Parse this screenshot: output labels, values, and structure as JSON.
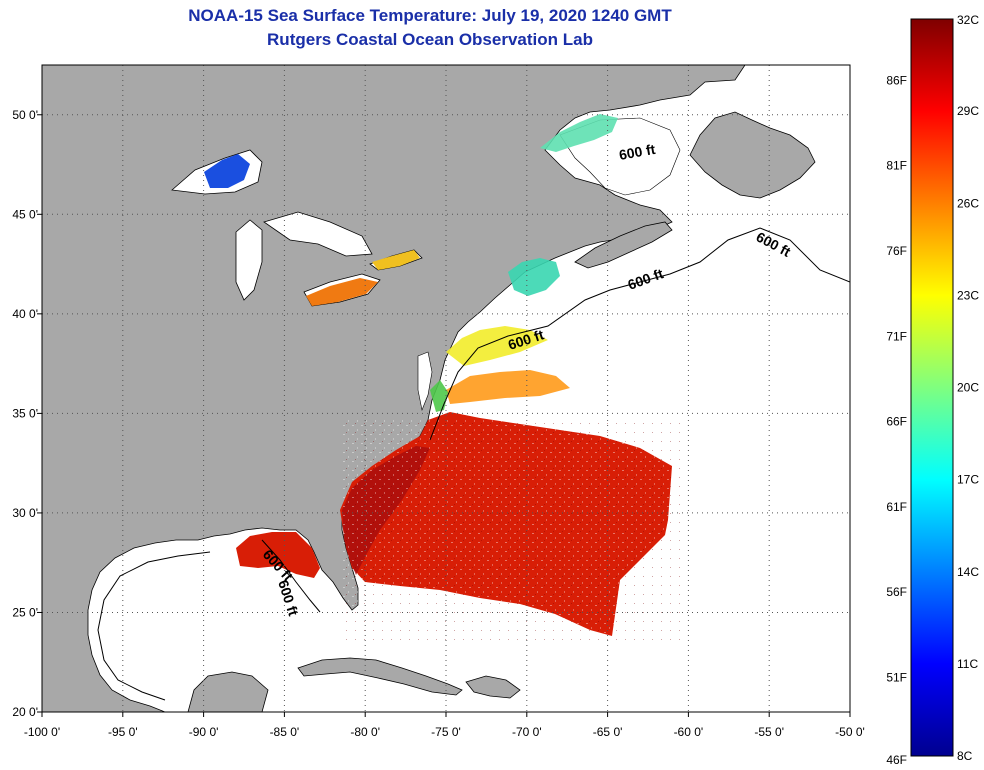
{
  "title": {
    "line1": "NOAA-15 Sea Surface Temperature:  July 19, 2020 1240 GMT",
    "line2": "Rutgers Coastal Ocean Observation Lab"
  },
  "map": {
    "lon_range": [
      -100,
      -50
    ],
    "lat_range": [
      20,
      52.5
    ],
    "lon_ticks": [
      {
        "value": -100,
        "label": "-100 0'"
      },
      {
        "value": -95,
        "label": "-95 0'"
      },
      {
        "value": -90,
        "label": "-90 0'"
      },
      {
        "value": -85,
        "label": "-85 0'"
      },
      {
        "value": -80,
        "label": "-80 0'"
      },
      {
        "value": -75,
        "label": "-75 0'"
      },
      {
        "value": -70,
        "label": "-70 0'"
      },
      {
        "value": -65,
        "label": "-65 0'"
      },
      {
        "value": -60,
        "label": "-60 0'"
      },
      {
        "value": -55,
        "label": "-55 0'"
      },
      {
        "value": -50,
        "label": "-50 0'"
      }
    ],
    "lat_ticks": [
      {
        "value": 20,
        "label": "20 0'"
      },
      {
        "value": 25,
        "label": "25 0'"
      },
      {
        "value": 30,
        "label": "30 0'"
      },
      {
        "value": 35,
        "label": "35 0'"
      },
      {
        "value": 40,
        "label": "40 0'"
      },
      {
        "value": 45,
        "label": "45 0'"
      },
      {
        "value": 50,
        "label": "50 0'"
      }
    ],
    "isobath_label": "600 ft",
    "isobath_label_count": 6
  },
  "colorbar": {
    "min_c": 8,
    "max_c": 32,
    "celsius_labels": [
      {
        "value": 32,
        "label": "32C"
      },
      {
        "value": 29,
        "label": "29C"
      },
      {
        "value": 26,
        "label": "26C"
      },
      {
        "value": 23,
        "label": "23C"
      },
      {
        "value": 20,
        "label": "20C"
      },
      {
        "value": 17,
        "label": "17C"
      },
      {
        "value": 14,
        "label": "14C"
      },
      {
        "value": 11,
        "label": "11C"
      },
      {
        "value": 8,
        "label": "8C"
      }
    ],
    "fahrenheit_labels": [
      {
        "value": 86,
        "label": "86F"
      },
      {
        "value": 81,
        "label": "81F"
      },
      {
        "value": 76,
        "label": "76F"
      },
      {
        "value": 71,
        "label": "71F"
      },
      {
        "value": 66,
        "label": "66F"
      },
      {
        "value": 61,
        "label": "61F"
      },
      {
        "value": 56,
        "label": "56F"
      },
      {
        "value": 51,
        "label": "51F"
      },
      {
        "value": 46,
        "label": "46F"
      }
    ]
  },
  "colors": {
    "land": "#a8a8a8",
    "ocean": "#ffffff",
    "title": "#1a2fa8",
    "warm": "#d81e06",
    "hot": "#a80c0c"
  }
}
